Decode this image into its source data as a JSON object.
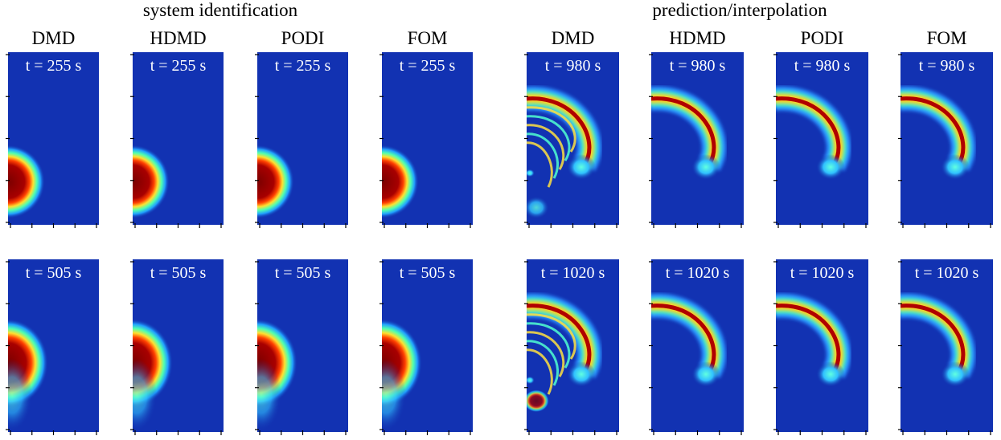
{
  "groups": [
    {
      "title": "system identification",
      "columns": [
        "DMD",
        "HDMD",
        "PODI",
        "FOM"
      ],
      "rows": [
        "t = 255 s",
        "t = 505 s"
      ]
    },
    {
      "title": "prediction/interpolation",
      "columns": [
        "DMD",
        "HDMD",
        "PODI",
        "FOM"
      ],
      "rows": [
        "t = 980 s",
        "t = 1020 s"
      ]
    }
  ]
}
